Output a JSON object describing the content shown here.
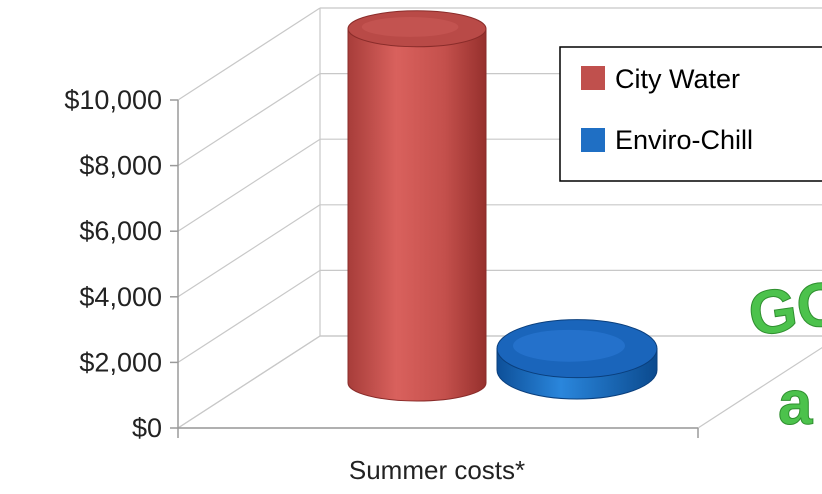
{
  "chart_data": {
    "type": "bar",
    "style": "3d-cylinder",
    "categories": [
      "Summer costs*"
    ],
    "series": [
      {
        "name": "City Water",
        "values": [
          10800
        ],
        "color": "#c0504d"
      },
      {
        "name": "Enviro-Chill",
        "values": [
          650
        ],
        "color": "#1f6fc4"
      }
    ],
    "ylim": [
      0,
      10000
    ],
    "yticks": [
      "$0",
      "$2,000",
      "$4,000",
      "$6,000",
      "$8,000",
      "$10,000"
    ],
    "ytick_values": [
      0,
      2000,
      4000,
      6000,
      8000,
      10000
    ],
    "grid": true,
    "legend_position": "top-right"
  },
  "overlay_text": {
    "line1": "GO",
    "line2": "a"
  }
}
